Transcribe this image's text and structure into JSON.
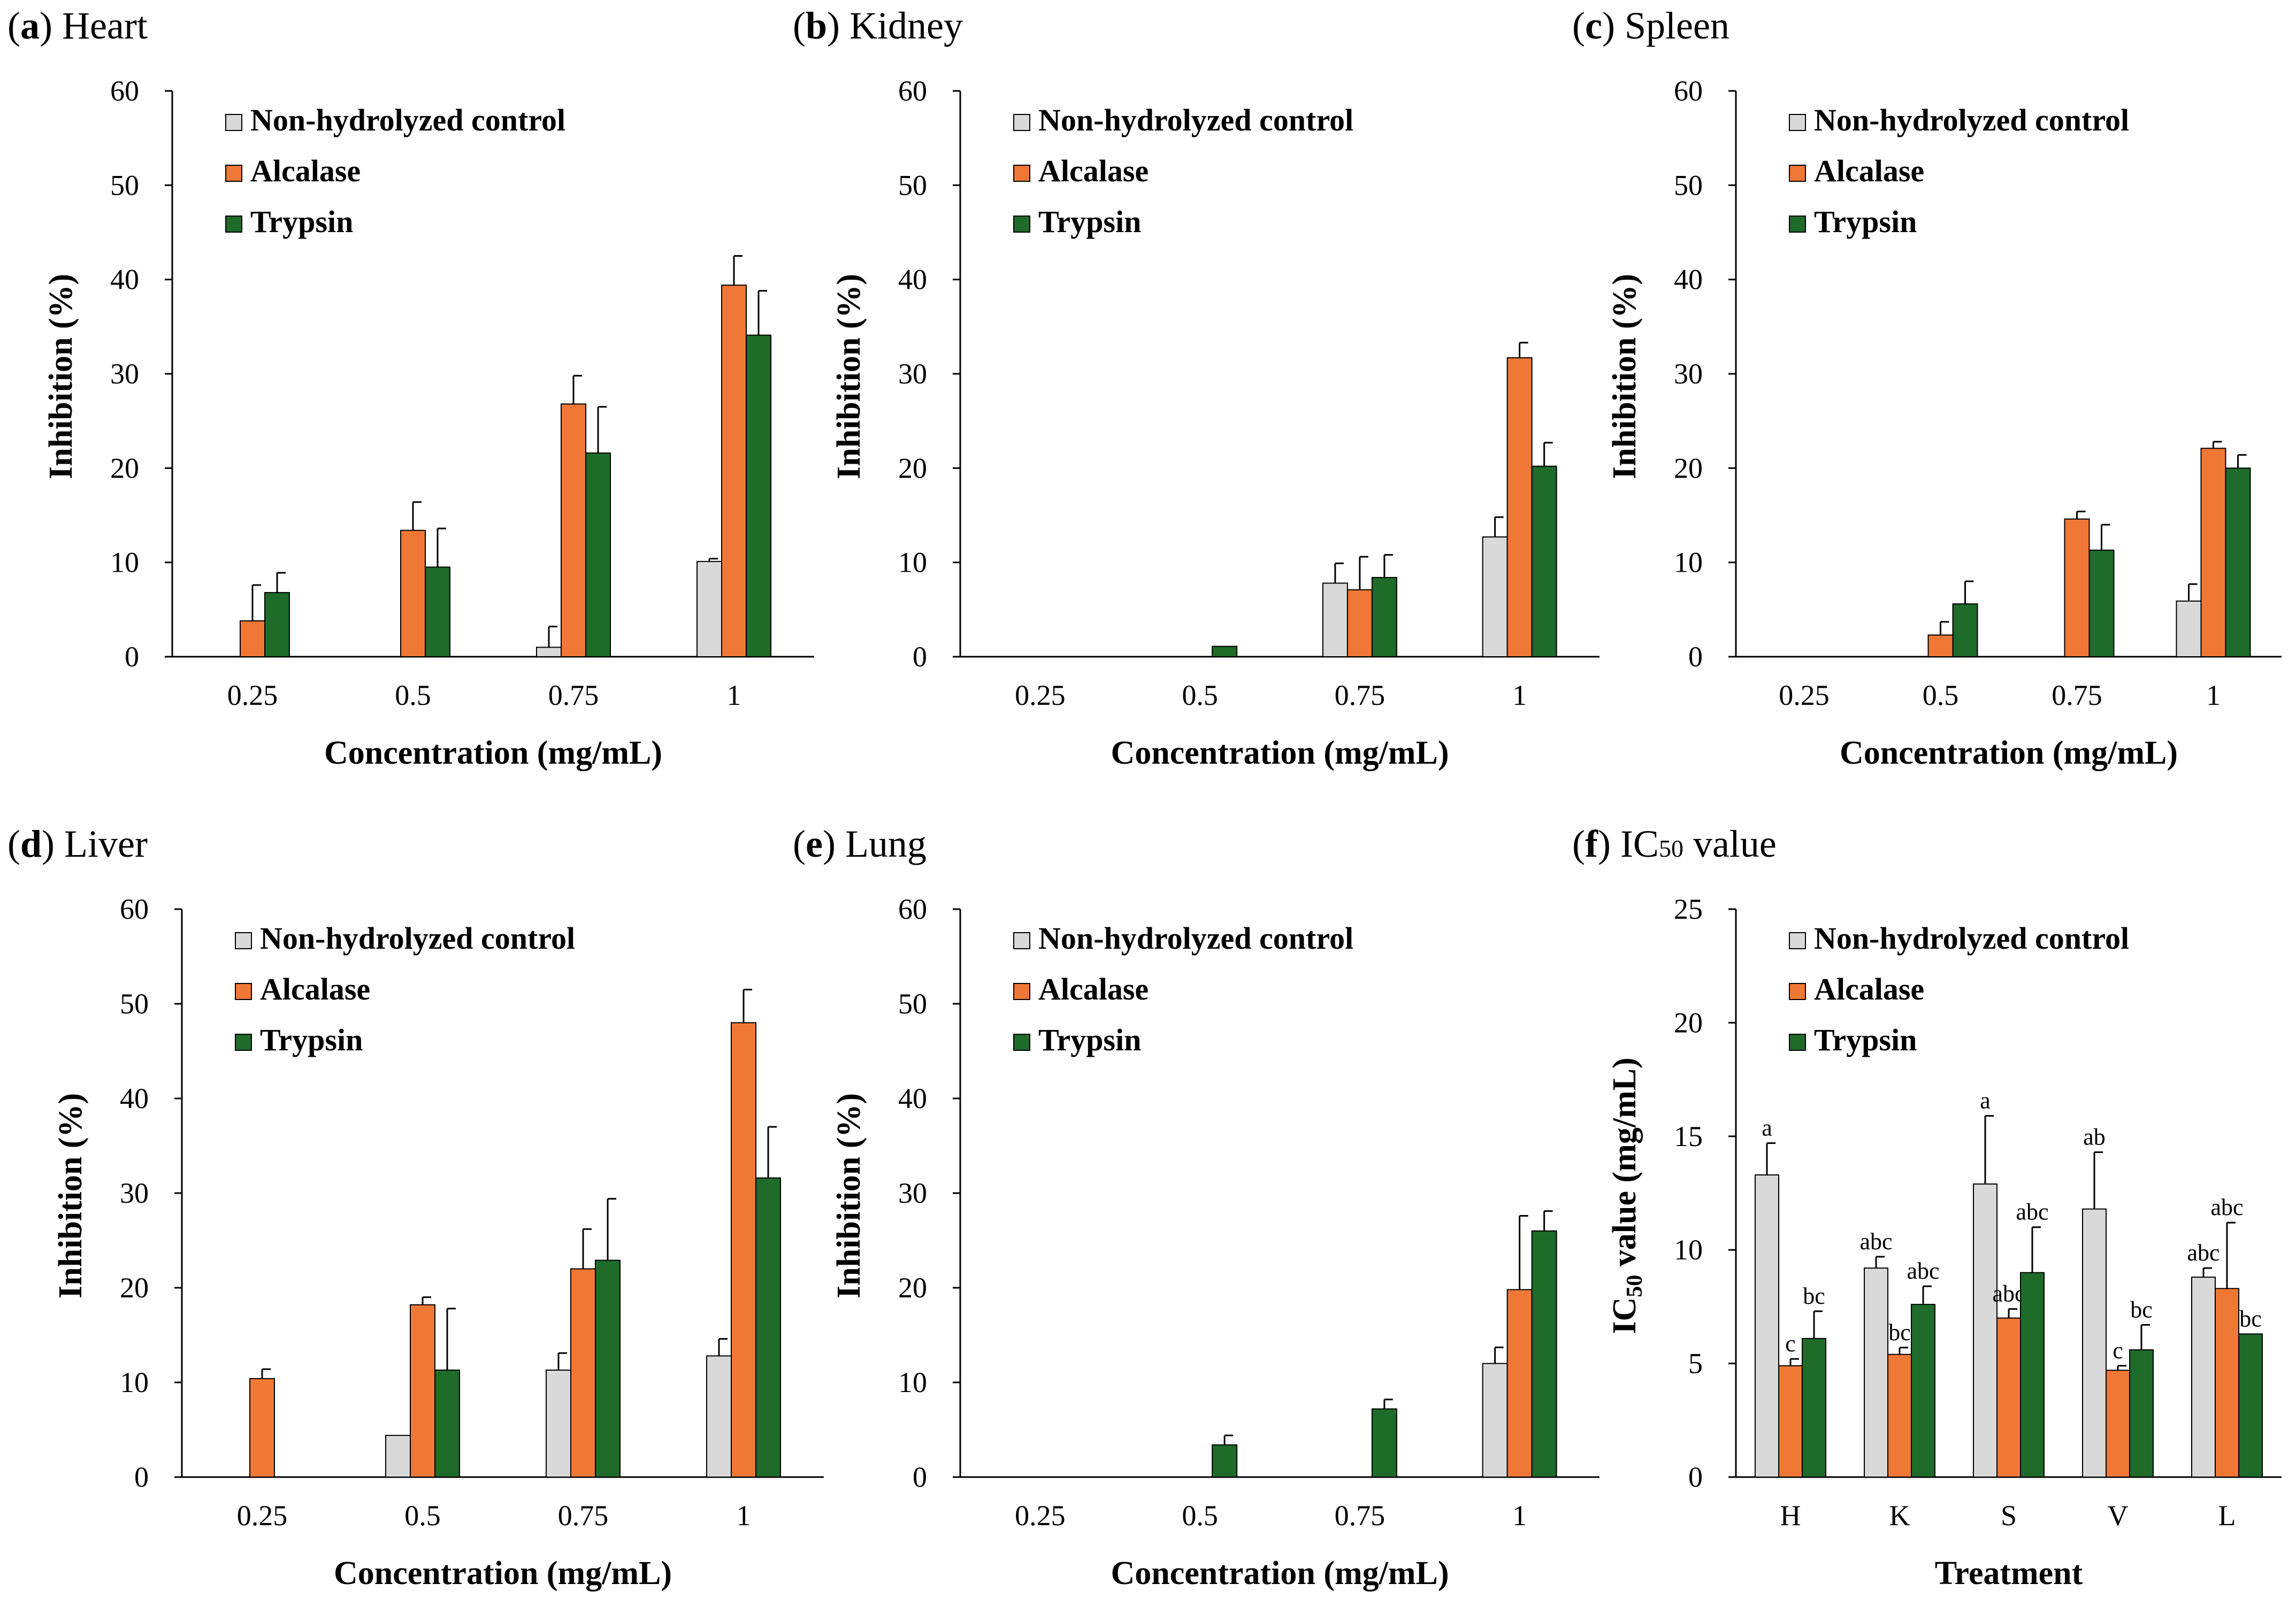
{
  "colors": {
    "control": "#d9d9d9",
    "alcalase": "#f07836",
    "trypsin": "#1e6b2a",
    "outline": "#000000"
  },
  "chart_data": [
    {
      "type": "bar",
      "panel_letter": "a",
      "panel_name": " Heart",
      "categories": [
        "0.25",
        "0.5",
        "0.75",
        "1"
      ],
      "ylim": [
        0,
        60
      ],
      "yticks": [
        "0",
        "10",
        "20",
        "30",
        "40",
        "50",
        "60"
      ],
      "xlabel": "Concentration (mg/mL)",
      "ylabel": "Inhibition (%)",
      "legend": [
        "Non-hydrolyzed control",
        "Alcalase",
        "Trypsin"
      ],
      "series": [
        {
          "name": "Non-hydrolyzed control",
          "values": [
            0,
            0,
            1.0,
            10.1
          ],
          "errors": [
            0,
            0,
            2.2,
            0.3
          ]
        },
        {
          "name": "Alcalase",
          "values": [
            3.8,
            13.4,
            26.8,
            39.4
          ],
          "errors": [
            3.8,
            3.0,
            3.0,
            3.1
          ]
        },
        {
          "name": "Trypsin",
          "values": [
            6.8,
            9.5,
            21.6,
            34.1
          ],
          "errors": [
            2.1,
            4.1,
            4.9,
            4.7
          ]
        }
      ]
    },
    {
      "type": "bar",
      "panel_letter": "b",
      "panel_name": " Kidney",
      "categories": [
        "0.25",
        "0.5",
        "0.75",
        "1"
      ],
      "ylim": [
        0,
        60
      ],
      "yticks": [
        "0",
        "10",
        "20",
        "30",
        "40",
        "50",
        "60"
      ],
      "xlabel": "Concentration (mg/mL)",
      "ylabel": "Inhibition (%)",
      "legend": [
        "Non-hydrolyzed control",
        "Alcalase",
        "Trypsin"
      ],
      "series": [
        {
          "name": "Non-hydrolyzed control",
          "values": [
            0,
            0,
            7.8,
            12.7
          ],
          "errors": [
            0,
            0,
            2.1,
            2.1
          ]
        },
        {
          "name": "Alcalase",
          "values": [
            0,
            0,
            7.1,
            31.7
          ],
          "errors": [
            0,
            0,
            3.5,
            1.6
          ]
        },
        {
          "name": "Trypsin",
          "values": [
            0,
            1.1,
            8.4,
            20.2
          ],
          "errors": [
            0,
            0,
            2.4,
            2.5
          ]
        }
      ]
    },
    {
      "type": "bar",
      "panel_letter": "c",
      "panel_name": " Spleen",
      "categories": [
        "0.25",
        "0.5",
        "0.75",
        "1"
      ],
      "ylim": [
        0,
        60
      ],
      "yticks": [
        "0",
        "10",
        "20",
        "30",
        "40",
        "50",
        "60"
      ],
      "xlabel": "Concentration (mg/mL)",
      "ylabel": "Inhibition (%)",
      "legend": [
        "Non-hydrolyzed control",
        "Alcalase",
        "Trypsin"
      ],
      "series": [
        {
          "name": "Non-hydrolyzed control",
          "values": [
            0,
            0,
            0,
            5.9
          ],
          "errors": [
            0,
            0,
            0,
            1.8
          ]
        },
        {
          "name": "Alcalase",
          "values": [
            0,
            2.3,
            14.6,
            22.1
          ],
          "errors": [
            0,
            1.4,
            0.8,
            0.7
          ]
        },
        {
          "name": "Trypsin",
          "values": [
            0,
            5.6,
            11.3,
            20.0
          ],
          "errors": [
            0,
            2.4,
            2.7,
            1.4
          ]
        }
      ]
    },
    {
      "type": "bar",
      "panel_letter": "d",
      "panel_name": " Liver",
      "categories": [
        "0.25",
        "0.5",
        "0.75",
        "1"
      ],
      "ylim": [
        0,
        60
      ],
      "yticks": [
        "0",
        "10",
        "20",
        "30",
        "40",
        "50",
        "60"
      ],
      "xlabel": "Concentration (mg/mL)",
      "ylabel": "Inhibition (%)",
      "legend": [
        "Non-hydrolyzed control",
        "Alcalase",
        "Trypsin"
      ],
      "series": [
        {
          "name": "Non-hydrolyzed control",
          "values": [
            0,
            4.4,
            11.3,
            12.8
          ],
          "errors": [
            0,
            0,
            1.8,
            1.8
          ]
        },
        {
          "name": "Alcalase",
          "values": [
            10.4,
            18.2,
            22.0,
            48.0
          ],
          "errors": [
            1.0,
            0.8,
            4.2,
            3.5
          ]
        },
        {
          "name": "Trypsin",
          "values": [
            0,
            11.3,
            22.9,
            31.6
          ],
          "errors": [
            0,
            6.5,
            6.5,
            5.4
          ]
        }
      ]
    },
    {
      "type": "bar",
      "panel_letter": "e",
      "panel_name": " Lung",
      "categories": [
        "0.25",
        "0.5",
        "0.75",
        "1"
      ],
      "ylim": [
        0,
        60
      ],
      "yticks": [
        "0",
        "10",
        "20",
        "30",
        "40",
        "50",
        "60"
      ],
      "xlabel": "Concentration (mg/mL)",
      "ylabel": "Inhibition (%)",
      "legend": [
        "Non-hydrolyzed control",
        "Alcalase",
        "Trypsin"
      ],
      "series": [
        {
          "name": "Non-hydrolyzed control",
          "values": [
            0,
            0,
            0,
            12.0
          ],
          "errors": [
            0,
            0,
            0,
            1.7
          ]
        },
        {
          "name": "Alcalase",
          "values": [
            0,
            0,
            0,
            19.8
          ],
          "errors": [
            0,
            0,
            0,
            7.8
          ]
        },
        {
          "name": "Trypsin",
          "values": [
            0,
            3.4,
            7.2,
            26.0
          ],
          "errors": [
            0,
            1.0,
            1.0,
            2.1
          ]
        }
      ]
    },
    {
      "type": "bar",
      "panel_letter": "f",
      "panel_name": " IC",
      "panel_sub": "50",
      "panel_tail": " value",
      "categories": [
        "H",
        "K",
        "S",
        "V",
        "L"
      ],
      "ylim": [
        0,
        25
      ],
      "yticks": [
        "0",
        "5",
        "10",
        "15",
        "20",
        "25"
      ],
      "xlabel": "Treatment",
      "ylabel": "IC",
      "ylabel_sub": "50",
      "ylabel_tail": " value (mg/mL)",
      "legend": [
        "Non-hydrolyzed control",
        "Alcalase",
        "Trypsin"
      ],
      "series": [
        {
          "name": "Non-hydrolyzed control",
          "values": [
            13.3,
            9.2,
            12.9,
            11.8,
            8.8
          ],
          "errors": [
            1.4,
            0.5,
            3.0,
            2.5,
            0.4
          ],
          "labels": [
            "a",
            "abc",
            "a",
            "ab",
            "abc"
          ]
        },
        {
          "name": "Alcalase",
          "values": [
            4.9,
            5.4,
            7.0,
            4.7,
            8.3
          ],
          "errors": [
            0.3,
            0.3,
            0.4,
            0.2,
            2.9
          ],
          "labels": [
            "c",
            "bc",
            "abc",
            "c",
            "abc"
          ]
        },
        {
          "name": "Trypsin",
          "values": [
            6.1,
            7.6,
            9.0,
            5.6,
            6.3
          ],
          "errors": [
            1.2,
            0.8,
            2.0,
            1.1,
            0
          ],
          "labels": [
            "bc",
            "abc",
            "abc",
            "bc",
            "bc"
          ]
        }
      ]
    }
  ]
}
